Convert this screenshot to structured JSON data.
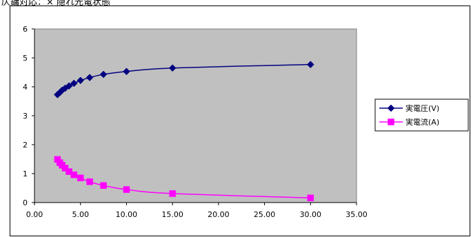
{
  "caption": "仄鏞対応：× 隠れ光電状態",
  "chart_data": {
    "type": "scatter",
    "title": "",
    "xlabel": "",
    "ylabel": "",
    "xlim": [
      0,
      35
    ],
    "ylim": [
      0,
      6
    ],
    "x_ticks": [
      0,
      5,
      10,
      15,
      20,
      25,
      30,
      35
    ],
    "x_tick_labels": [
      "0.00",
      "5.00",
      "10.00",
      "15.00",
      "20.00",
      "25.00",
      "30.00",
      "35.00"
    ],
    "y_ticks": [
      0,
      1,
      2,
      3,
      4,
      5,
      6
    ],
    "y_tick_labels": [
      "0",
      "1",
      "2",
      "3",
      "4",
      "5",
      "6"
    ],
    "grid": false,
    "legend_position": "right",
    "plot_background": "#c0c0c0",
    "series": [
      {
        "name": "実電圧(V)",
        "color": "#000080",
        "marker": "diamond",
        "x": [
          2.5,
          2.75,
          3.0,
          3.33,
          3.75,
          4.29,
          5.0,
          6.0,
          7.5,
          10.0,
          15.0,
          30.0
        ],
        "y": [
          3.73,
          3.8,
          3.88,
          3.95,
          4.03,
          4.12,
          4.22,
          4.32,
          4.43,
          4.53,
          4.65,
          4.77
        ]
      },
      {
        "name": "実電流(A)",
        "color": "#ff00ff",
        "marker": "square",
        "x": [
          2.5,
          2.75,
          3.0,
          3.33,
          3.75,
          4.29,
          5.0,
          6.0,
          7.5,
          10.0,
          15.0,
          30.0
        ],
        "y": [
          1.49,
          1.38,
          1.29,
          1.19,
          1.07,
          0.96,
          0.85,
          0.72,
          0.59,
          0.45,
          0.31,
          0.16
        ]
      }
    ]
  }
}
